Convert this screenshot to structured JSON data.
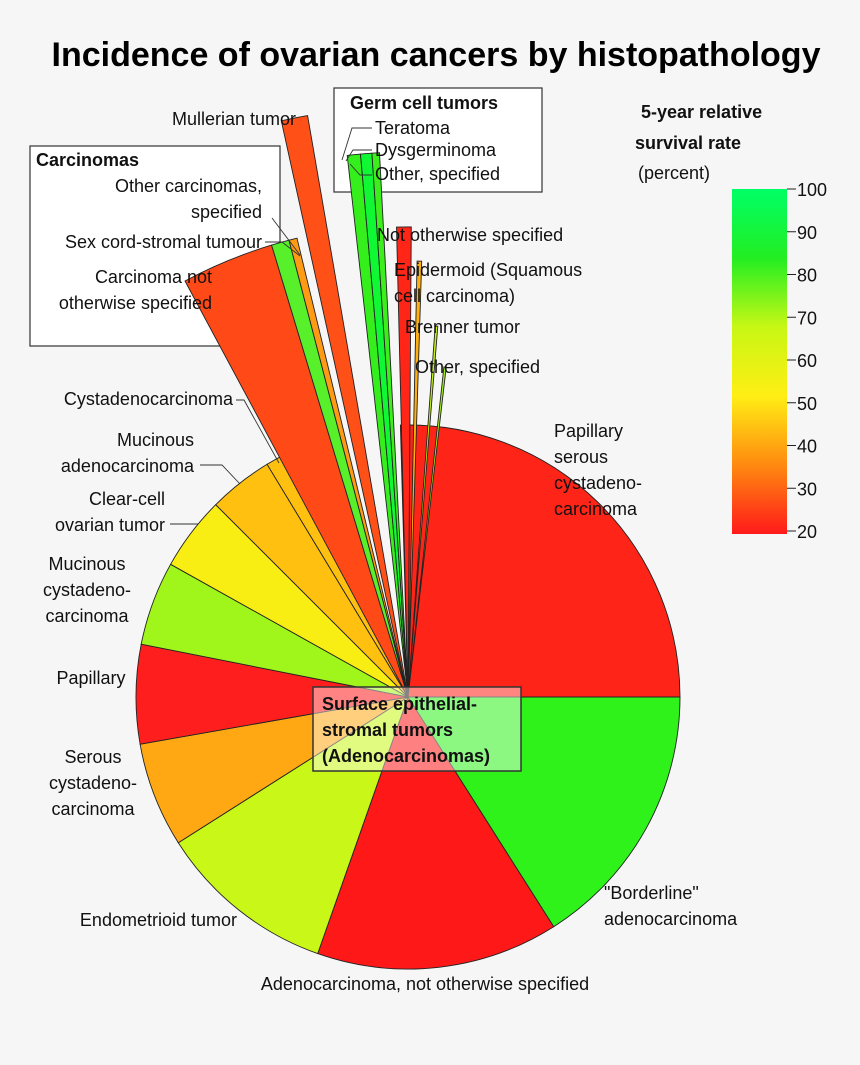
{
  "chart_data": {
    "type": "pie",
    "title": "Incidence of ovarian cancers by histopathology",
    "center_label": [
      "Surface epithelial-",
      "stromal tumors",
      "(Adenocarcinomas)"
    ],
    "color_scale": {
      "title": [
        "5-year relative",
        "survival rate"
      ],
      "unit": "(percent)",
      "min": 20,
      "max": 100,
      "ticks": [
        100,
        90,
        80,
        70,
        60,
        50,
        40,
        30,
        20
      ],
      "colors": [
        "#ff1a1a",
        "#ff8a10",
        "#ffee14",
        "#c8f714",
        "#22ee22",
        "#00ff66"
      ]
    },
    "slices": [
      {
        "label": "Papillary serous cystadeno-carcinoma",
        "lines": [
          "Papillary",
          "serous",
          "cystadeno-",
          "carcinoma"
        ],
        "incidence": 25.4,
        "survival": 24,
        "color": "#ff2418"
      },
      {
        "label": "\"Borderline\" adenocarcinoma",
        "lines": [
          "\"Borderline\"",
          "adenocarcinoma"
        ],
        "incidence": 16.1,
        "survival": 87,
        "color": "#2ef21a"
      },
      {
        "label": "Adenocarcinoma, not otherwise specified",
        "lines": [
          "Adenocarcinoma, not otherwise specified"
        ],
        "incidence": 14.4,
        "survival": 21,
        "color": "#ff1818"
      },
      {
        "label": "Endometrioid tumor",
        "lines": [
          "Endometrioid tumor"
        ],
        "incidence": 10.6,
        "survival": 64,
        "color": "#c8f718"
      },
      {
        "label": "Serous cystadenocarcinoma",
        "lines": [
          "Serous",
          "cystadeno-",
          "carcinoma"
        ],
        "incidence": 6.2,
        "survival": 40,
        "color": "#ffa814"
      },
      {
        "label": "Papillary",
        "lines": [
          "Papillary"
        ],
        "incidence": 5.9,
        "survival": 24,
        "color": "#ff1e1e"
      },
      {
        "label": "Mucinous cystadenocarcinoma",
        "lines": [
          "Mucinous",
          "cystadeno-",
          "carcinoma"
        ],
        "incidence": 5.0,
        "survival": 68,
        "color": "#a0f51a"
      },
      {
        "label": "Clear-cell ovarian tumor",
        "lines": [
          "Clear-cell",
          "ovarian tumor"
        ],
        "incidence": 4.4,
        "survival": 50,
        "color": "#f8ee14"
      },
      {
        "label": "Mucinous adenocarcinoma",
        "lines": [
          "Mucinous",
          "adenocarcinoma"
        ],
        "incidence": 3.8,
        "survival": 44,
        "color": "#ffc010"
      },
      {
        "label": "Cystadenocarcinoma",
        "lines": [
          "Cystadenocarcinoma"
        ],
        "incidence": 1.3,
        "survival": 44,
        "color": "#ffc010"
      },
      {
        "label": "Carcinoma not otherwise specified",
        "lines": [
          "Carcinoma not",
          "otherwise specified"
        ],
        "incidence": 3.2,
        "survival": 30,
        "color": "#ff4a18",
        "group": "Carcinomas"
      },
      {
        "label": "Sex cord-stromal tumour",
        "lines": [
          "Sex cord-stromal tumour"
        ],
        "incidence": 0.6,
        "survival": 76,
        "color": "#58f02a",
        "group": "Carcinomas"
      },
      {
        "label": "Other carcinomas, specified",
        "lines": [
          "Other carcinomas,",
          "specified"
        ],
        "incidence": 0.3,
        "survival": 38,
        "color": "#ff9a14",
        "group": "Carcinomas"
      },
      {
        "label": "Mullerian tumor",
        "lines": [
          "Mullerian tumor"
        ],
        "incidence": 0.7,
        "survival": 31,
        "color": "#ff5018"
      },
      {
        "label": "Teratoma",
        "lines": [
          "Teratoma"
        ],
        "incidence": 0.4,
        "survival": 88,
        "color": "#34ef1c",
        "group": "Germ cell tumors"
      },
      {
        "label": "Dysgerminoma",
        "lines": [
          "Dysgerminoma"
        ],
        "incidence": 0.3,
        "survival": 96,
        "color": "#10f834",
        "group": "Germ cell tumors"
      },
      {
        "label": "Other, specified (germ cell)",
        "lines": [
          "Other, specified"
        ],
        "incidence": 0.2,
        "survival": 84,
        "color": "#3cef1c",
        "group": "Germ cell tumors"
      },
      {
        "label": "Not otherwise specified",
        "lines": [
          "Not otherwise specified"
        ],
        "incidence": 0.5,
        "survival": 26,
        "color": "#ff2618"
      },
      {
        "label": "Epidermoid (Squamous cell carcinoma)",
        "lines": [
          "Epidermoid (Squamous",
          "cell carcinoma)"
        ],
        "incidence": 0.2,
        "survival": 51,
        "color": "#ffb010"
      },
      {
        "label": "Brenner tumor",
        "lines": [
          "Brenner tumor"
        ],
        "incidence": 0.1,
        "survival": 67,
        "color": "#c0f314"
      },
      {
        "label": "Other, specified",
        "lines": [
          "Other, specified"
        ],
        "incidence": 0.1,
        "survival": 70,
        "color": "#a4f318"
      }
    ],
    "groups": {
      "carcinomas": "Carcinomas",
      "germ_cell": "Germ cell tumors"
    }
  }
}
